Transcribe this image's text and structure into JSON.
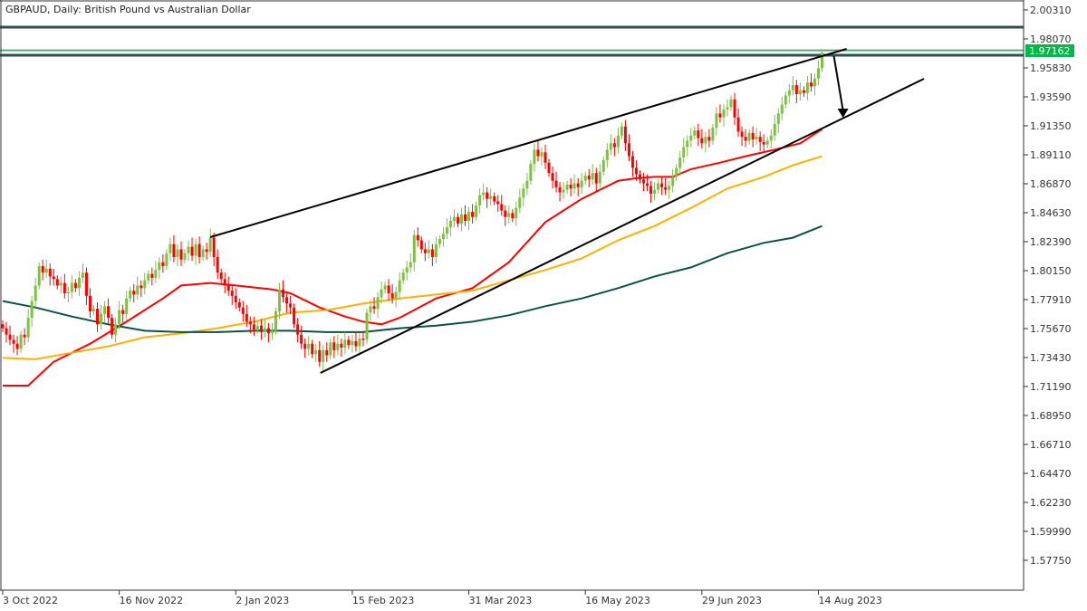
{
  "header": {
    "title": "GBPAUD, Daily:  British Pound vs Australian Dollar"
  },
  "colors": {
    "up_candle": "#7dc142",
    "down_candle": "#ff0000",
    "ma_fast": "#ff0000",
    "ma_mid": "#ffb000",
    "ma_slow": "#0b5245",
    "level_line": "#2f4f4f",
    "price_tag": "#00b84a",
    "drawing": "#000000"
  },
  "chart_data": {
    "type": "candlestick",
    "symbol": "GBPAUD",
    "timeframe": "Daily",
    "ylim": [
      1.561,
      2.011
    ],
    "y_ticks": [
      "2.00310",
      "1.98070",
      "1.95830",
      "1.93590",
      "1.91350",
      "1.89110",
      "1.86870",
      "1.84630",
      "1.82390",
      "1.80150",
      "1.77910",
      "1.75670",
      "1.73430",
      "1.71190",
      "1.68950",
      "1.66710",
      "1.64470",
      "1.62230",
      "1.59990",
      "1.57750"
    ],
    "x_ticks": [
      {
        "bar": 0,
        "label": "3 Oct 2022"
      },
      {
        "bar": 32,
        "label": "16 Nov 2022"
      },
      {
        "bar": 64,
        "label": "2 Jan 2023"
      },
      {
        "bar": 96,
        "label": "15 Feb 2023"
      },
      {
        "bar": 128,
        "label": "31 Mar 2023"
      },
      {
        "bar": 160,
        "label": "16 May 2023"
      },
      {
        "bar": 192,
        "label": "29 Jun 2023"
      },
      {
        "bar": 224,
        "label": "14 Aug 2023"
      }
    ],
    "current_price": "1.97162",
    "closes": [
      1.757,
      1.752,
      1.748,
      1.745,
      1.741,
      1.752,
      1.75,
      1.765,
      1.778,
      1.79,
      1.805,
      1.8,
      1.803,
      1.797,
      1.795,
      1.79,
      1.792,
      1.784,
      1.785,
      1.792,
      1.788,
      1.796,
      1.8,
      1.782,
      1.77,
      1.772,
      1.76,
      1.768,
      1.774,
      1.765,
      1.752,
      1.76,
      1.771,
      1.768,
      1.78,
      1.786,
      1.783,
      1.79,
      1.788,
      1.794,
      1.799,
      1.796,
      1.802,
      1.808,
      1.805,
      1.815,
      1.822,
      1.812,
      1.818,
      1.81,
      1.815,
      1.82,
      1.813,
      1.822,
      1.812,
      1.818,
      1.816,
      1.827,
      1.812,
      1.8,
      1.795,
      1.79,
      1.786,
      1.782,
      1.777,
      1.773,
      1.768,
      1.762,
      1.76,
      1.756,
      1.759,
      1.754,
      1.757,
      1.753,
      1.755,
      1.77,
      1.787,
      1.781,
      1.776,
      1.773,
      1.76,
      1.752,
      1.745,
      1.741,
      1.745,
      1.737,
      1.74,
      1.731,
      1.74,
      1.736,
      1.746,
      1.74,
      1.745,
      1.742,
      1.748,
      1.744,
      1.747,
      1.743,
      1.749,
      1.748,
      1.769,
      1.774,
      1.772,
      1.781,
      1.787,
      1.79,
      1.784,
      1.78,
      1.785,
      1.794,
      1.8,
      1.804,
      1.808,
      1.829,
      1.825,
      1.818,
      1.815,
      1.818,
      1.812,
      1.822,
      1.826,
      1.83,
      1.835,
      1.84,
      1.843,
      1.838,
      1.845,
      1.84,
      1.847,
      1.843,
      1.852,
      1.86,
      1.862,
      1.857,
      1.859,
      1.855,
      1.853,
      1.848,
      1.843,
      1.846,
      1.842,
      1.85,
      1.858,
      1.865,
      1.871,
      1.884,
      1.895,
      1.89,
      1.893,
      1.885,
      1.877,
      1.871,
      1.866,
      1.862,
      1.864,
      1.868,
      1.865,
      1.869,
      1.866,
      1.871,
      1.875,
      1.872,
      1.877,
      1.869,
      1.878,
      1.887,
      1.895,
      1.9,
      1.897,
      1.906,
      1.913,
      1.9,
      1.89,
      1.881,
      1.876,
      1.872,
      1.869,
      1.867,
      1.861,
      1.864,
      1.869,
      1.866,
      1.864,
      1.867,
      1.874,
      1.881,
      1.889,
      1.897,
      1.902,
      1.906,
      1.91,
      1.904,
      1.9,
      1.905,
      1.902,
      1.912,
      1.923,
      1.92,
      1.926,
      1.928,
      1.934,
      1.92,
      1.909,
      1.905,
      1.902,
      1.908,
      1.903,
      1.905,
      1.901,
      1.899,
      1.902,
      1.906,
      1.915,
      1.923,
      1.93,
      1.937,
      1.941,
      1.945,
      1.938,
      1.941,
      1.939,
      1.947,
      1.944,
      1.95,
      1.958,
      1.97
    ],
    "moving_averages": [
      {
        "key": "ma_fast",
        "points": [
          [
            0,
            1.7126
          ],
          [
            7,
            1.7126
          ],
          [
            14,
            1.731
          ],
          [
            24,
            1.745
          ],
          [
            34,
            1.762
          ],
          [
            44,
            1.78
          ],
          [
            49,
            1.79
          ],
          [
            57,
            1.792
          ],
          [
            64,
            1.79
          ],
          [
            74,
            1.787
          ],
          [
            79,
            1.784
          ],
          [
            87,
            1.773
          ],
          [
            94,
            1.766
          ],
          [
            99,
            1.762
          ],
          [
            104,
            1.76
          ],
          [
            109,
            1.765
          ],
          [
            119,
            1.78
          ],
          [
            129,
            1.788
          ],
          [
            139,
            1.808
          ],
          [
            149,
            1.839
          ],
          [
            159,
            1.857
          ],
          [
            169,
            1.871
          ],
          [
            174,
            1.873
          ],
          [
            179,
            1.874
          ],
          [
            184,
            1.874
          ],
          [
            189,
            1.88
          ],
          [
            197,
            1.885
          ],
          [
            204,
            1.89
          ],
          [
            212,
            1.895
          ],
          [
            219,
            1.9
          ],
          [
            225,
            1.911
          ]
        ]
      },
      {
        "key": "ma_mid",
        "points": [
          [
            0,
            1.734
          ],
          [
            9,
            1.733
          ],
          [
            19,
            1.738
          ],
          [
            29,
            1.743
          ],
          [
            39,
            1.75
          ],
          [
            49,
            1.753
          ],
          [
            59,
            1.757
          ],
          [
            69,
            1.762
          ],
          [
            79,
            1.769
          ],
          [
            89,
            1.771
          ],
          [
            99,
            1.776
          ],
          [
            109,
            1.78
          ],
          [
            119,
            1.783
          ],
          [
            129,
            1.786
          ],
          [
            139,
            1.794
          ],
          [
            149,
            1.802
          ],
          [
            159,
            1.811
          ],
          [
            169,
            1.825
          ],
          [
            179,
            1.836
          ],
          [
            189,
            1.85
          ],
          [
            199,
            1.865
          ],
          [
            209,
            1.874
          ],
          [
            217,
            1.883
          ],
          [
            225,
            1.89
          ]
        ]
      },
      {
        "key": "ma_slow",
        "points": [
          [
            0,
            1.778
          ],
          [
            9,
            1.773
          ],
          [
            19,
            1.766
          ],
          [
            29,
            1.76
          ],
          [
            39,
            1.755
          ],
          [
            49,
            1.754
          ],
          [
            59,
            1.754
          ],
          [
            69,
            1.755
          ],
          [
            79,
            1.755
          ],
          [
            89,
            1.754
          ],
          [
            99,
            1.754
          ],
          [
            109,
            1.757
          ],
          [
            119,
            1.759
          ],
          [
            129,
            1.762
          ],
          [
            139,
            1.767
          ],
          [
            149,
            1.774
          ],
          [
            159,
            1.78
          ],
          [
            169,
            1.788
          ],
          [
            179,
            1.797
          ],
          [
            189,
            1.804
          ],
          [
            199,
            1.815
          ],
          [
            209,
            1.823
          ],
          [
            217,
            1.827
          ],
          [
            225,
            1.836
          ]
        ]
      }
    ],
    "horizontal_levels": [
      1.9898,
      1.9681
    ],
    "bid_line": 1.97162,
    "gray_line": 1.9723,
    "trendlines": [
      {
        "from": [
          57,
          1.8274
        ],
        "to": [
          231.75,
          1.973
        ]
      },
      {
        "from": [
          87.25,
          1.7224
        ],
        "to": [
          253,
          1.9499
        ]
      }
    ],
    "arrow": {
      "from": [
        228.25,
        1.9674
      ],
      "to": [
        230.75,
        1.9198
      ]
    }
  }
}
